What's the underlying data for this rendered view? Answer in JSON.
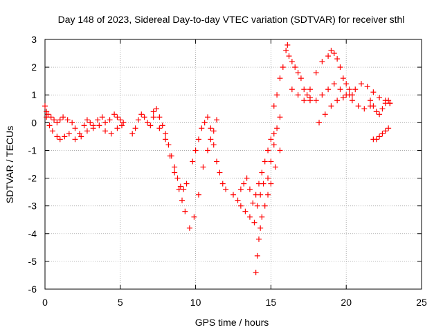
{
  "chart_data": {
    "type": "scatter",
    "title": "Day 148 of 2023, Sidereal Day-to-day VTEC variation (SDTVAR) for receiver sthl",
    "xlabel": "GPS time / hours",
    "ylabel": "SDTVAR / TECUs",
    "xlim": [
      0,
      25
    ],
    "ylim": [
      -6,
      3
    ],
    "xticks": [
      0,
      5,
      10,
      15,
      20,
      25
    ],
    "xtick_labels": [
      "0",
      "5",
      "10",
      "15",
      "20",
      "25"
    ],
    "yticks": [
      -6,
      -5,
      -4,
      -3,
      -2,
      -1,
      0,
      1,
      2,
      3
    ],
    "ytick_labels": [
      "-6",
      "-5",
      "-4",
      "-3",
      "-2",
      "-1",
      "0",
      "1",
      "2",
      "3"
    ],
    "grid": true,
    "marker": "+",
    "series": [
      {
        "name": "SDTVAR",
        "color": "#ff0000",
        "x": [
          0.0,
          0.1,
          0.2,
          0.4,
          0.6,
          0.8,
          1.0,
          1.2,
          1.5,
          1.8,
          2.0,
          2.3,
          2.6,
          2.8,
          3.0,
          3.2,
          3.5,
          3.8,
          4.0,
          4.3,
          4.6,
          4.8,
          5.0,
          5.2,
          0.1,
          0.3,
          0.5,
          0.8,
          1.0,
          1.3,
          1.6,
          2.0,
          2.4,
          2.8,
          3.2,
          3.6,
          4.0,
          4.4,
          4.8,
          5.1,
          5.8,
          6.0,
          6.2,
          6.4,
          6.6,
          6.8,
          7.0,
          7.2,
          7.4,
          7.6,
          7.8,
          8.0,
          8.2,
          8.4,
          8.6,
          8.8,
          9.0,
          9.2,
          9.4,
          7.2,
          7.6,
          8.0,
          8.3,
          8.6,
          8.9,
          9.1,
          9.3,
          9.6,
          9.9,
          10.2,
          10.5,
          10.8,
          11.0,
          11.2,
          11.4,
          9.8,
          10.0,
          10.2,
          10.4,
          10.6,
          10.8,
          11.0,
          11.2,
          11.4,
          11.6,
          11.8,
          12.0,
          12.5,
          12.8,
          13.0,
          13.2,
          13.4,
          13.6,
          13.8,
          14.0,
          14.2,
          14.4,
          14.6,
          14.8,
          15.0,
          15.2,
          13.0,
          13.3,
          13.6,
          13.9,
          14.1,
          14.3,
          14.5,
          14.8,
          15.0,
          15.2,
          15.4,
          15.6,
          14.0,
          14.1,
          14.2,
          14.3,
          14.4,
          14.6,
          14.8,
          15.0,
          15.3,
          15.6,
          15.2,
          15.4,
          15.6,
          15.8,
          16.0,
          16.1,
          16.2,
          16.4,
          16.6,
          16.8,
          17.0,
          17.2,
          17.4,
          17.6,
          16.4,
          16.8,
          17.2,
          17.6,
          18.0,
          18.4,
          18.8,
          19.0,
          19.2,
          19.4,
          19.6,
          19.8,
          20.0,
          20.2,
          20.4,
          17.6,
          18.0,
          18.4,
          18.8,
          19.2,
          19.6,
          20.0,
          20.4,
          20.8,
          21.2,
          21.6,
          18.2,
          18.6,
          19.0,
          19.4,
          19.8,
          20.2,
          20.6,
          21.0,
          21.4,
          21.8,
          22.2,
          22.6,
          22.9,
          21.6,
          21.8,
          22.0,
          22.2,
          22.4,
          22.6,
          22.8,
          22.9,
          21.8,
          22.0,
          22.2,
          22.4,
          22.6,
          22.8
        ],
        "y": [
          0.6,
          0.4,
          0.3,
          0.2,
          0.1,
          0.0,
          0.1,
          0.2,
          0.1,
          0.0,
          -0.2,
          -0.4,
          -0.1,
          0.1,
          0.0,
          -0.1,
          0.1,
          0.2,
          0.0,
          0.1,
          0.3,
          0.2,
          0.1,
          0.0,
          0.2,
          -0.1,
          -0.3,
          -0.5,
          -0.6,
          -0.5,
          -0.4,
          -0.6,
          -0.5,
          -0.3,
          -0.2,
          -0.1,
          -0.3,
          -0.4,
          -0.2,
          -0.1,
          -0.4,
          -0.2,
          0.1,
          0.3,
          0.2,
          0.0,
          -0.1,
          0.4,
          0.5,
          0.2,
          -0.1,
          -0.4,
          -0.8,
          -1.2,
          -1.6,
          -2.0,
          -2.3,
          -2.4,
          -2.2,
          0.2,
          -0.2,
          -0.6,
          -1.2,
          -1.8,
          -2.4,
          -2.8,
          -3.2,
          -3.8,
          -3.4,
          -2.6,
          -1.6,
          -1.0,
          -0.6,
          -0.3,
          0.1,
          -1.4,
          -1.0,
          -0.6,
          -0.2,
          0.0,
          0.2,
          -0.2,
          -0.8,
          -1.4,
          -1.8,
          -2.2,
          -2.4,
          -2.6,
          -2.8,
          -2.4,
          -2.2,
          -2.0,
          -2.4,
          -2.9,
          -2.6,
          -2.2,
          -1.8,
          -1.4,
          -1.0,
          -0.6,
          -0.4,
          -3.0,
          -3.2,
          -3.4,
          -3.6,
          -3.0,
          -2.6,
          -2.2,
          -2.0,
          -1.4,
          -0.8,
          -0.2,
          0.2,
          -5.4,
          -4.8,
          -4.2,
          -3.8,
          -3.4,
          -3.0,
          -2.6,
          -2.2,
          -1.6,
          -1.0,
          0.6,
          1.0,
          1.6,
          2.0,
          2.6,
          2.8,
          2.4,
          2.2,
          2.0,
          1.8,
          1.6,
          1.2,
          1.0,
          0.8,
          1.2,
          1.0,
          0.8,
          1.2,
          1.8,
          2.2,
          2.4,
          2.6,
          2.5,
          2.3,
          2.0,
          1.6,
          1.4,
          1.2,
          1.0,
          0.9,
          0.8,
          1.0,
          1.2,
          1.4,
          1.2,
          1.0,
          0.8,
          0.6,
          0.5,
          0.6,
          0.0,
          0.3,
          0.6,
          0.8,
          0.9,
          1.0,
          1.2,
          1.4,
          1.3,
          1.1,
          0.9,
          0.8,
          0.7,
          0.8,
          0.6,
          0.4,
          0.3,
          0.5,
          0.7,
          0.8,
          0.7,
          -0.6,
          -0.6,
          -0.5,
          -0.4,
          -0.3,
          -0.2
        ]
      }
    ]
  }
}
